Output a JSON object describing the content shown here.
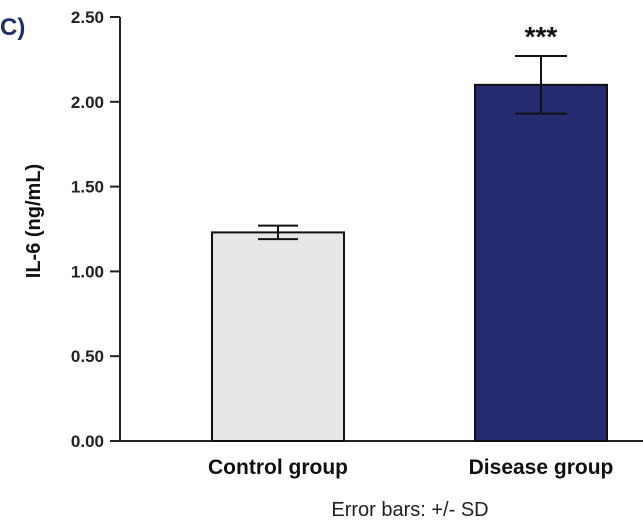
{
  "panel_label": "C)",
  "colors": {
    "panel_label": "#1f2d6b",
    "axis": "#222222",
    "bar_outline": "#111111"
  },
  "chart_data": {
    "type": "bar",
    "categories": [
      "Control group",
      "Disease group"
    ],
    "values": [
      1.23,
      2.1
    ],
    "error_bars": [
      0.04,
      0.17
    ],
    "bar_colors": [
      "#e6e6e6",
      "#272c70"
    ],
    "significance_labels": [
      "",
      "***"
    ],
    "ylabel": "IL-6 (ng/mL)",
    "xlabel": "",
    "ylim": [
      0,
      2.5
    ],
    "yticks": [
      "0.00",
      "0.50",
      "1.00",
      "1.50",
      "2.00",
      "2.50"
    ],
    "note": "Error bars: +/- SD"
  }
}
